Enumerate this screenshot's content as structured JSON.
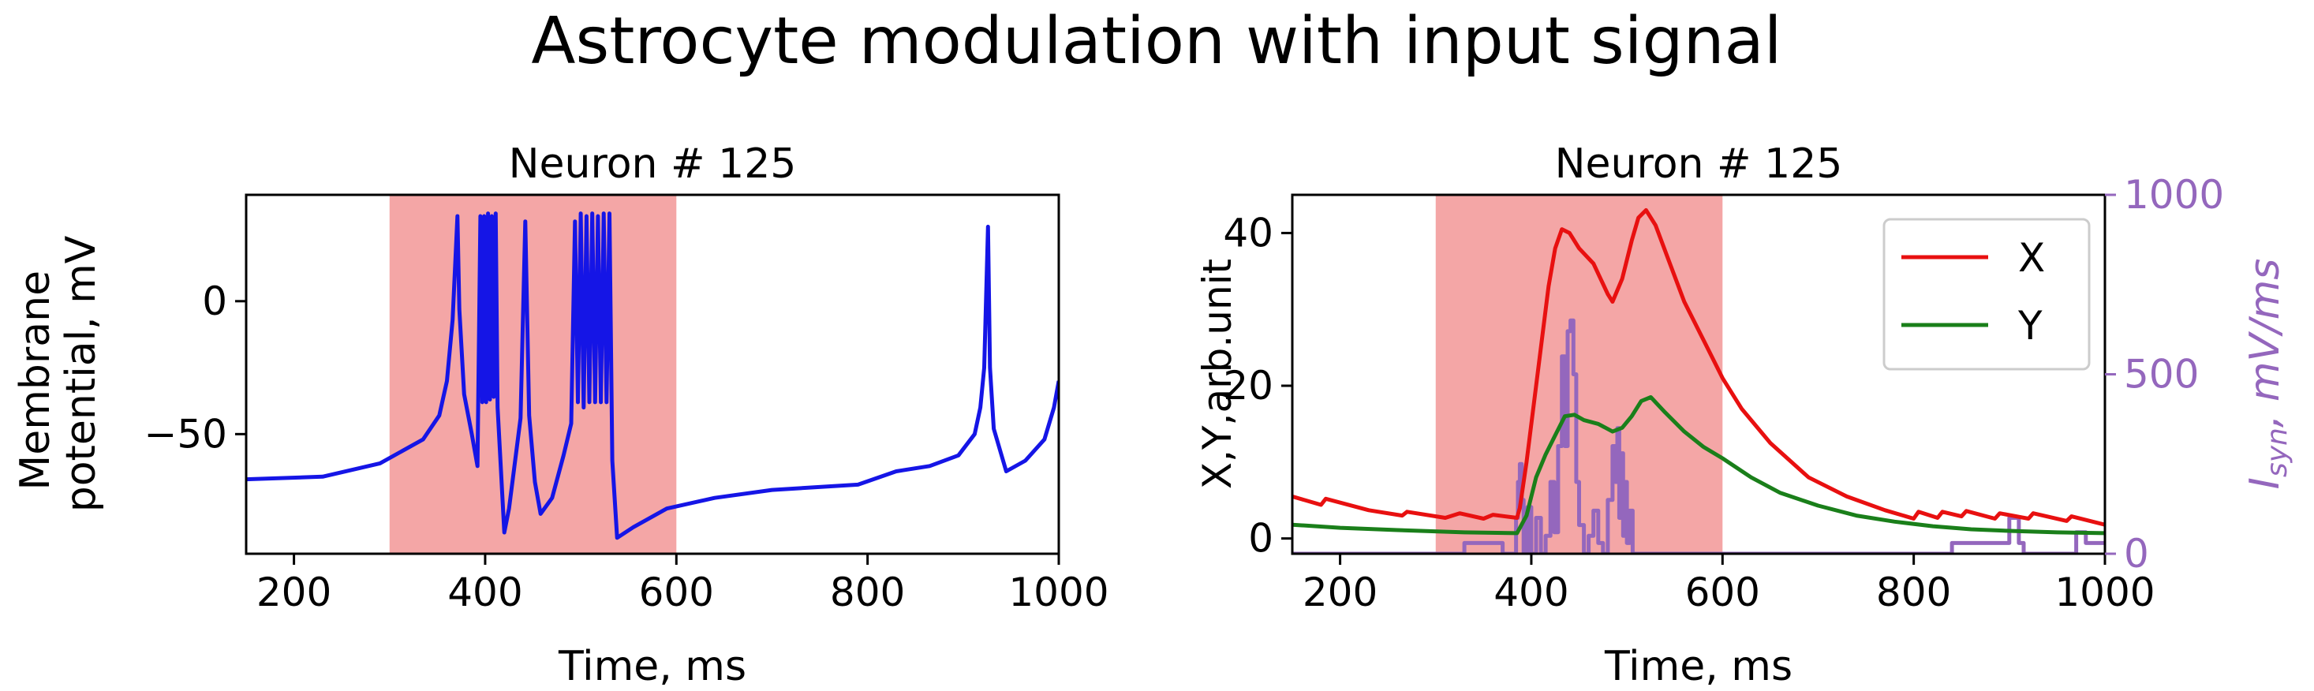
{
  "suptitle": "Astrocyte modulation with input signal",
  "colors": {
    "shade": "#f4a6a6",
    "membrane": "#1515e6",
    "x_series": "#e81010",
    "y_series": "#1a7f1a",
    "isyn": "#9467bd"
  },
  "chart_data": [
    {
      "type": "line",
      "title": "Neuron # 125",
      "xlabel": "Time, ms",
      "ylabel": "Membrane potential, mV",
      "ylabel_lines": [
        "Membrane",
        "potential, mV"
      ],
      "xlim": [
        150,
        1000
      ],
      "ylim": [
        -95,
        40
      ],
      "xticks": [
        200,
        400,
        600,
        800,
        1000
      ],
      "yticks": [
        0,
        -50
      ],
      "shaded_region": [
        300,
        600
      ],
      "series": [
        {
          "name": "membrane potential",
          "color_key": "membrane",
          "points": [
            [
              150,
              -67
            ],
            [
              230,
              -66
            ],
            [
              290,
              -61
            ],
            [
              335,
              -52
            ],
            [
              352,
              -43
            ],
            [
              360,
              -30
            ],
            [
              366,
              -7
            ],
            [
              371,
              32
            ],
            [
              373,
              -3
            ],
            [
              378,
              -35
            ],
            [
              386,
              -50
            ],
            [
              392,
              -62
            ],
            [
              395,
              32
            ],
            [
              397,
              -38
            ],
            [
              399,
              32
            ],
            [
              401,
              -38
            ],
            [
              403,
              33
            ],
            [
              405,
              -37
            ],
            [
              407,
              32
            ],
            [
              409,
              -36
            ],
            [
              411,
              33
            ],
            [
              413,
              -40
            ],
            [
              420,
              -87
            ],
            [
              425,
              -78
            ],
            [
              437,
              -44
            ],
            [
              442,
              30
            ],
            [
              446,
              -43
            ],
            [
              452,
              -68
            ],
            [
              458,
              -80
            ],
            [
              470,
              -74
            ],
            [
              482,
              -58
            ],
            [
              490,
              -46
            ],
            [
              494,
              30
            ],
            [
              497,
              -38
            ],
            [
              500,
              33
            ],
            [
              503,
              -40
            ],
            [
              506,
              32
            ],
            [
              509,
              -38
            ],
            [
              512,
              33
            ],
            [
              515,
              -38
            ],
            [
              518,
              32
            ],
            [
              521,
              -38
            ],
            [
              524,
              33
            ],
            [
              527,
              -38
            ],
            [
              530,
              33
            ],
            [
              533,
              -60
            ],
            [
              538,
              -89
            ],
            [
              555,
              -85
            ],
            [
              590,
              -78
            ],
            [
              640,
              -74
            ],
            [
              700,
              -71
            ],
            [
              790,
              -69
            ],
            [
              830,
              -64
            ],
            [
              865,
              -62
            ],
            [
              895,
              -58
            ],
            [
              912,
              -50
            ],
            [
              918,
              -40
            ],
            [
              922,
              -25
            ],
            [
              926,
              28
            ],
            [
              928,
              -25
            ],
            [
              932,
              -48
            ],
            [
              945,
              -64
            ],
            [
              965,
              -60
            ],
            [
              985,
              -52
            ],
            [
              995,
              -40
            ],
            [
              1000,
              -30
            ]
          ]
        }
      ]
    },
    {
      "type": "line",
      "title": "Neuron # 125",
      "xlabel": "Time, ms",
      "ylabel": "X,Y,arb.unit",
      "ylabel_right": "I_syn, mV/ms",
      "ylabel_right_parts": {
        "base": "I",
        "sub": "syn",
        "rest": ", mV/ms"
      },
      "xlim": [
        150,
        1000
      ],
      "ylim": [
        -2,
        45
      ],
      "ylim_right": [
        0,
        1000
      ],
      "xticks": [
        200,
        400,
        600,
        800,
        1000
      ],
      "yticks": [
        0,
        20,
        40
      ],
      "yticks_right": [
        0,
        500,
        1000
      ],
      "shaded_region": [
        300,
        600
      ],
      "legend": {
        "placement": "top-right",
        "entries": [
          "X",
          "Y"
        ]
      },
      "series": [
        {
          "name": "X",
          "color_key": "x_series",
          "points": [
            [
              150,
              5.5
            ],
            [
              180,
              4.4
            ],
            [
              185,
              5.2
            ],
            [
              230,
              3.7
            ],
            [
              265,
              3
            ],
            [
              270,
              3.5
            ],
            [
              310,
              2.7
            ],
            [
              325,
              3.3
            ],
            [
              350,
              2.6
            ],
            [
              360,
              3.1
            ],
            [
              385,
              2.7
            ],
            [
              388,
              4
            ],
            [
              395,
              10
            ],
            [
              403,
              18
            ],
            [
              410,
              25
            ],
            [
              418,
              33
            ],
            [
              425,
              38
            ],
            [
              432,
              40.5
            ],
            [
              440,
              40
            ],
            [
              450,
              38
            ],
            [
              465,
              36
            ],
            [
              480,
              32
            ],
            [
              485,
              31
            ],
            [
              495,
              34
            ],
            [
              505,
              39
            ],
            [
              512,
              42
            ],
            [
              520,
              43
            ],
            [
              530,
              41
            ],
            [
              545,
              36
            ],
            [
              560,
              31
            ],
            [
              580,
              26
            ],
            [
              600,
              21
            ],
            [
              620,
              17
            ],
            [
              650,
              12.5
            ],
            [
              690,
              8
            ],
            [
              730,
              5.5
            ],
            [
              770,
              3.7
            ],
            [
              800,
              2.6
            ],
            [
              805,
              3.5
            ],
            [
              825,
              2.7
            ],
            [
              830,
              3.5
            ],
            [
              850,
              2.9
            ],
            [
              855,
              3.6
            ],
            [
              885,
              2.6
            ],
            [
              890,
              3.3
            ],
            [
              920,
              2.6
            ],
            [
              925,
              3.3
            ],
            [
              960,
              2.3
            ],
            [
              965,
              2.9
            ],
            [
              1000,
              1.8
            ]
          ]
        },
        {
          "name": "Y",
          "color_key": "y_series",
          "points": [
            [
              150,
              1.8
            ],
            [
              200,
              1.4
            ],
            [
              260,
              1.1
            ],
            [
              330,
              0.8
            ],
            [
              385,
              0.7
            ],
            [
              395,
              3
            ],
            [
              405,
              8
            ],
            [
              415,
              11
            ],
            [
              425,
              13.5
            ],
            [
              435,
              16
            ],
            [
              445,
              16.2
            ],
            [
              455,
              15.5
            ],
            [
              470,
              15
            ],
            [
              485,
              14
            ],
            [
              495,
              14.5
            ],
            [
              505,
              16
            ],
            [
              515,
              18
            ],
            [
              525,
              18.5
            ],
            [
              540,
              16.5
            ],
            [
              560,
              14
            ],
            [
              580,
              12
            ],
            [
              600,
              10.5
            ],
            [
              630,
              8
            ],
            [
              660,
              6
            ],
            [
              700,
              4.3
            ],
            [
              740,
              3
            ],
            [
              780,
              2.2
            ],
            [
              820,
              1.6
            ],
            [
              860,
              1.2
            ],
            [
              900,
              1
            ],
            [
              950,
              0.8
            ],
            [
              1000,
              0.7
            ]
          ]
        },
        {
          "name": "I_syn",
          "color_key": "isyn",
          "axis": "right",
          "step": true,
          "points": [
            [
              150,
              0
            ],
            [
              330,
              0
            ],
            [
              330,
              30
            ],
            [
              370,
              30
            ],
            [
              370,
              0
            ],
            [
              383,
              0
            ],
            [
              384,
              100
            ],
            [
              386,
              200
            ],
            [
              388,
              250
            ],
            [
              390,
              150
            ],
            [
              392,
              0
            ],
            [
              396,
              130
            ],
            [
              400,
              0
            ],
            [
              405,
              100
            ],
            [
              410,
              0
            ],
            [
              415,
              50
            ],
            [
              420,
              200
            ],
            [
              424,
              60
            ],
            [
              428,
              300
            ],
            [
              432,
              550
            ],
            [
              435,
              300
            ],
            [
              438,
              620
            ],
            [
              441,
              650
            ],
            [
              444,
              500
            ],
            [
              447,
              200
            ],
            [
              450,
              80
            ],
            [
              455,
              0
            ],
            [
              460,
              50
            ],
            [
              465,
              120
            ],
            [
              470,
              30
            ],
            [
              475,
              0
            ],
            [
              480,
              150
            ],
            [
              485,
              300
            ],
            [
              488,
              200
            ],
            [
              490,
              350
            ],
            [
              492,
              100
            ],
            [
              494,
              280
            ],
            [
              496,
              50
            ],
            [
              498,
              200
            ],
            [
              500,
              30
            ],
            [
              503,
              120
            ],
            [
              506,
              0
            ],
            [
              840,
              0
            ],
            [
              840,
              30
            ],
            [
              900,
              30
            ],
            [
              900,
              100
            ],
            [
              910,
              100
            ],
            [
              910,
              30
            ],
            [
              915,
              30
            ],
            [
              915,
              0
            ],
            [
              970,
              0
            ],
            [
              970,
              60
            ],
            [
              980,
              60
            ],
            [
              980,
              30
            ],
            [
              1000,
              30
            ]
          ]
        }
      ]
    }
  ]
}
